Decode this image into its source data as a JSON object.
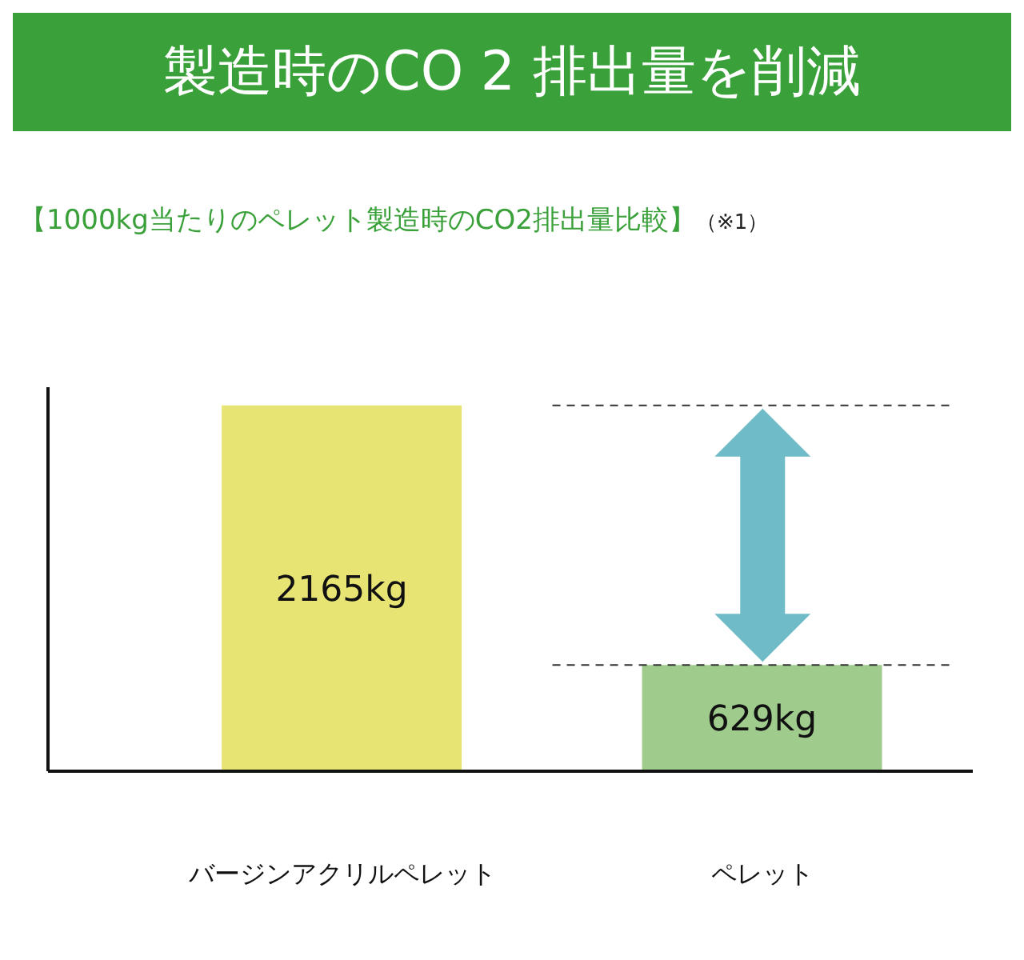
{
  "chart_data": {
    "type": "bar",
    "title": "製造時のCO 2 排出量を削減",
    "subtitle": "【1000kg当たりのペレット製造時のCO2排出量比較】",
    "annotations": [
      "（※1）"
    ],
    "categories": [
      "バージンアクリルペレット",
      "ペレット"
    ],
    "values": [
      2165,
      629
    ],
    "value_labels": [
      "2165kg",
      "629kg"
    ],
    "colors": [
      "#e8e474",
      "#9fcb8c"
    ],
    "ref_lines": [
      {
        "axis": "y",
        "value": 2165,
        "color": "#333333",
        "line_style": "dashed"
      },
      {
        "axis": "y",
        "value": 629,
        "color": "#333333",
        "line_style": "dashed"
      }
    ],
    "tick_labels": "x"
  }
}
